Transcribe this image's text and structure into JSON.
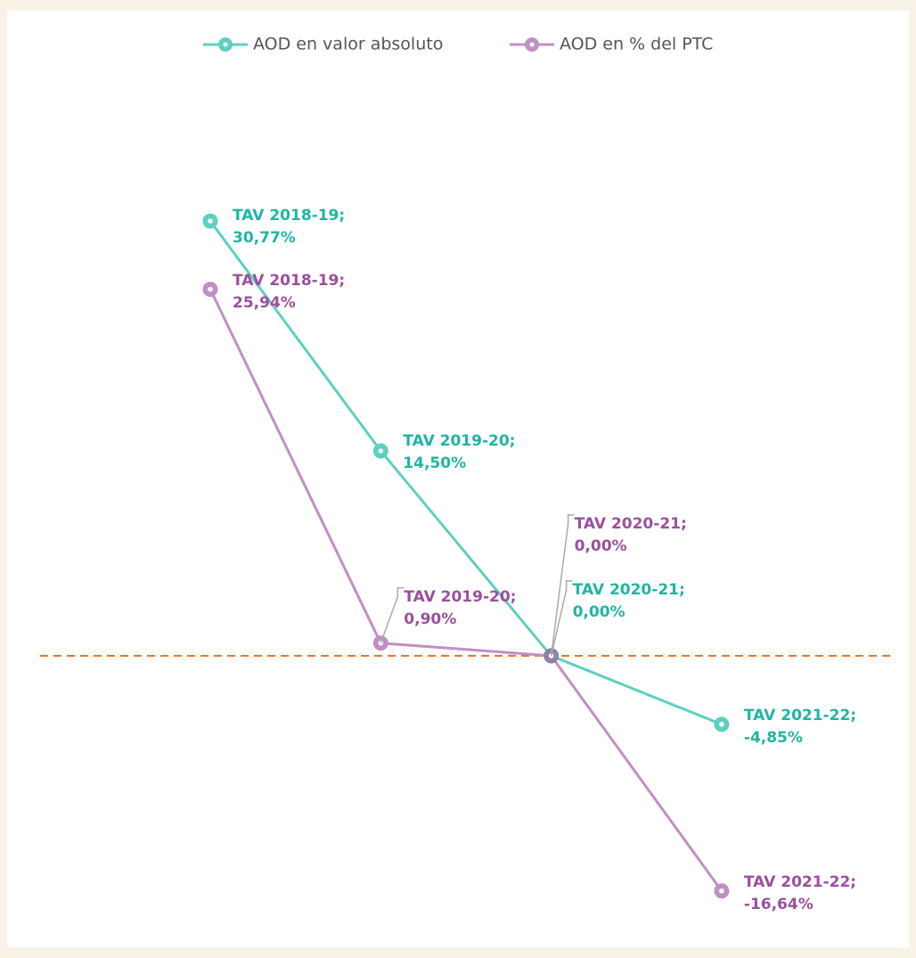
{
  "chart_data": {
    "type": "line",
    "series": [
      {
        "name": "AOD en valor absoluto",
        "color": "#5ecfc0",
        "label_color": "#1fb5a3",
        "values": [
          30.77,
          14.5,
          0.0,
          -4.85
        ],
        "value_labels": [
          "TAV 2018-19; 30,77%",
          "TAV 2019-20; 14,50%",
          "TAV 2020-21; 0,00%",
          "TAV 2021-22; -4,85%"
        ]
      },
      {
        "name": "AOD en % del PTC",
        "color": "#c08fc4",
        "label_color": "#9b4f9e",
        "values": [
          25.94,
          0.9,
          0.0,
          -16.64
        ],
        "value_labels": [
          "TAV 2018-19; 25,94%",
          "TAV 2019-20; 0,90%",
          "TAV 2020-21; 0,00%",
          "TAV 2021-22; -16,64%"
        ]
      }
    ],
    "ylim": [
      -20,
      35
    ],
    "zero_line_color": "#e8731f"
  }
}
